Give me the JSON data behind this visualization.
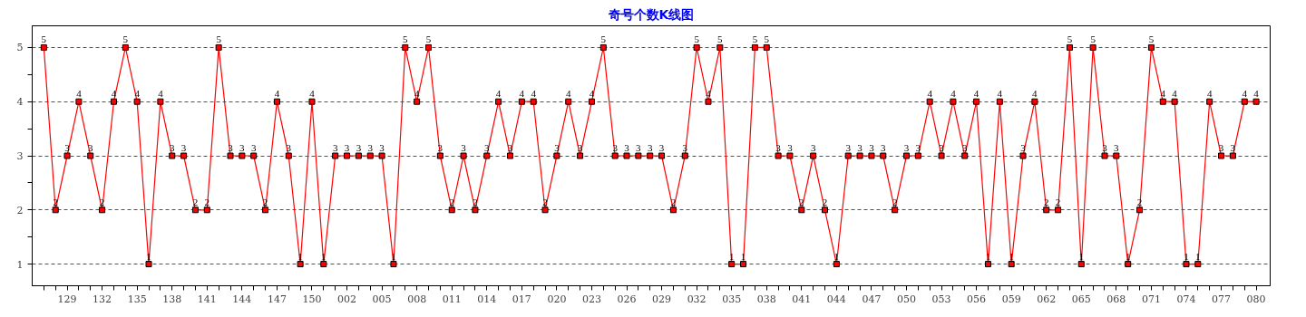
{
  "chart_data": {
    "type": "line",
    "title": "奇号个数K线图",
    "categories": [
      null,
      null,
      "129",
      null,
      null,
      "132",
      null,
      null,
      "135",
      null,
      null,
      "138",
      null,
      null,
      "141",
      null,
      null,
      "144",
      null,
      null,
      "147",
      null,
      null,
      "150",
      null,
      null,
      "002",
      null,
      null,
      "005",
      null,
      null,
      "008",
      null,
      null,
      "011",
      null,
      null,
      "014",
      null,
      null,
      "017",
      null,
      null,
      "020",
      null,
      null,
      "023",
      null,
      null,
      "026",
      null,
      null,
      "029",
      null,
      null,
      "032",
      null,
      null,
      "035",
      null,
      null,
      "038",
      null,
      null,
      "041",
      null,
      null,
      "044",
      null,
      null,
      "047",
      null,
      null,
      "050",
      null,
      null,
      "053",
      null,
      null,
      "056",
      null,
      null,
      "059",
      null,
      null,
      "062",
      null,
      null,
      "065",
      null,
      null,
      "068",
      null,
      null,
      "071",
      null,
      null,
      "074",
      null,
      null,
      "077",
      null,
      null,
      "080"
    ],
    "series": [
      {
        "color": "#ff0000",
        "values": [
          5,
          2,
          3,
          4,
          3,
          2,
          4,
          5,
          4,
          1,
          4,
          3,
          3,
          2,
          2,
          5,
          3,
          3,
          3,
          2,
          4,
          3,
          1,
          4,
          1,
          3,
          3,
          3,
          3,
          3,
          1,
          5,
          4,
          5,
          3,
          2,
          3,
          2,
          3,
          4,
          3,
          4,
          4,
          2,
          3,
          4,
          3,
          4,
          5,
          3,
          3,
          3,
          3,
          3,
          2,
          3,
          5,
          4,
          5,
          1,
          1,
          5,
          5,
          3,
          3,
          2,
          3,
          2,
          1,
          3,
          3,
          3,
          3,
          2,
          3,
          3,
          4,
          3,
          4,
          3,
          4,
          1,
          4,
          1,
          3,
          4,
          2,
          2,
          5,
          1,
          5,
          3,
          3,
          1,
          2,
          5,
          4,
          4,
          1,
          1,
          4,
          3,
          3,
          4,
          4
        ]
      }
    ],
    "ylim": [
      0.6,
      5.4
    ],
    "yticks": [
      1,
      {
        "value": 1.5,
        "label": null
      },
      2,
      {
        "value": 2.5,
        "label": null
      },
      3,
      {
        "value": 3.5,
        "label": null
      },
      4,
      {
        "value": 4.5,
        "label": null
      },
      5
    ],
    "grid": "y",
    "marker": "square",
    "line_style": "solid",
    "data_labels": true
  }
}
